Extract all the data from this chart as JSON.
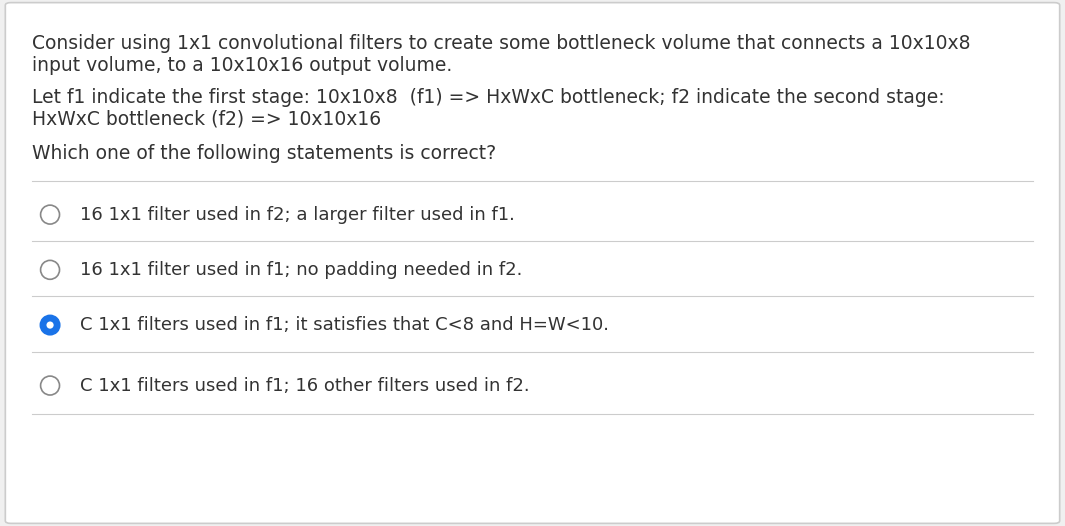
{
  "bg_color": "#f0f0f0",
  "card_color": "#ffffff",
  "border_color": "#cccccc",
  "divider_color": "#cccccc",
  "text_color": "#333333",
  "radio_empty_color": "#888888",
  "radio_selected_fill": "#1a73e8",
  "radio_selected_border": "#1a73e8",
  "paragraph1_line1": "Consider using 1x1 convolutional filters to create some bottleneck volume that connects a 10x10x8",
  "paragraph1_line2": "input volume, to a 10x10x16 output volume.",
  "paragraph2_line1": "Let f1 indicate the first stage: 10x10x8  (f1) => HxWxC bottleneck; f2 indicate the second stage:",
  "paragraph2_line2": "HxWxC bottleneck (f2) => 10x10x16",
  "paragraph3": "Which one of the following statements is correct?",
  "options": [
    "16 1x1 filter used in f2; a larger filter used in f1.",
    "16 1x1 filter used in f1; no padding needed in f2.",
    "C 1x1 filters used in f1; it satisfies that C<8 and H=W<10.",
    "C 1x1 filters used in f1; 16 other filters used in f2."
  ],
  "selected_option": 2,
  "font_size_body": 13.5,
  "font_size_options": 13.0
}
